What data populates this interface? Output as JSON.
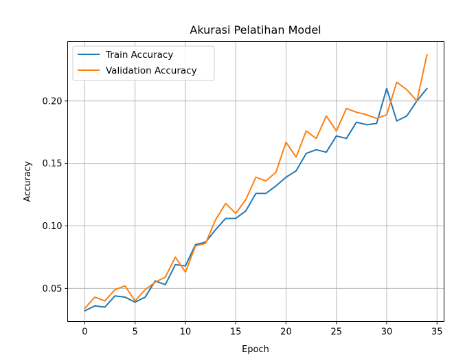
{
  "chart_data": {
    "type": "line",
    "title": "Akurasi Pelatihan Model",
    "xlabel": "Epoch",
    "ylabel": "Accuracy",
    "xlim": [
      -1.7,
      35.7
    ],
    "ylim": [
      0.0235,
      0.2475
    ],
    "grid": true,
    "legend_position": "upper-left",
    "xticks": [
      0,
      5,
      10,
      15,
      20,
      25,
      30,
      35
    ],
    "xtick_labels": [
      "0",
      "5",
      "10",
      "15",
      "20",
      "25",
      "30",
      "35"
    ],
    "yticks": [
      0.05,
      0.1,
      0.15,
      0.2
    ],
    "ytick_labels": [
      "0.05",
      "0.10",
      "0.15",
      "0.20"
    ],
    "x": [
      0,
      1,
      2,
      3,
      4,
      5,
      6,
      7,
      8,
      9,
      10,
      11,
      12,
      13,
      14,
      15,
      16,
      17,
      18,
      19,
      20,
      21,
      22,
      23,
      24,
      25,
      26,
      27,
      28,
      29,
      30,
      31,
      32,
      33,
      34
    ],
    "series": [
      {
        "name": "Train Accuracy",
        "color": "#1f77b4",
        "values": [
          0.032,
          0.036,
          0.035,
          0.044,
          0.043,
          0.039,
          0.043,
          0.056,
          0.053,
          0.069,
          0.068,
          0.085,
          0.087,
          0.097,
          0.106,
          0.106,
          0.112,
          0.126,
          0.126,
          0.132,
          0.139,
          0.144,
          0.158,
          0.161,
          0.159,
          0.172,
          0.17,
          0.183,
          0.181,
          0.182,
          0.21,
          0.184,
          0.188,
          0.2,
          0.21
        ]
      },
      {
        "name": "Validation Accuracy",
        "color": "#ff7f0e",
        "values": [
          0.034,
          0.043,
          0.04,
          0.049,
          0.052,
          0.04,
          0.049,
          0.055,
          0.059,
          0.075,
          0.063,
          0.084,
          0.086,
          0.105,
          0.118,
          0.11,
          0.121,
          0.139,
          0.136,
          0.143,
          0.167,
          0.155,
          0.176,
          0.17,
          0.188,
          0.176,
          0.194,
          0.191,
          0.189,
          0.186,
          0.189,
          0.215,
          0.209,
          0.2,
          0.237
        ]
      }
    ]
  }
}
